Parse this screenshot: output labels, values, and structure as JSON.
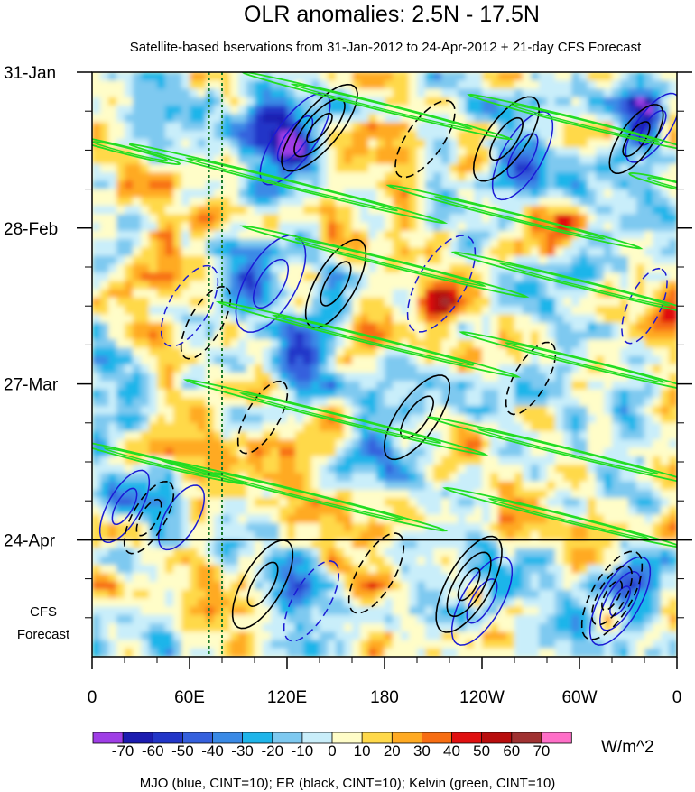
{
  "chart_data": {
    "type": "heatmap",
    "title": "OLR anomalies: 2.5N - 17.5N",
    "subtitle": "Satellite-based bservations from 31-Jan-2012 to 24-Apr-2012 + 21-day CFS Forecast",
    "x_axis": {
      "tick_labels": [
        "0",
        "60E",
        "120E",
        "180",
        "120W",
        "60W",
        "0"
      ],
      "tick_degrees_east": [
        0,
        60,
        120,
        180,
        240,
        300,
        360
      ],
      "range": [
        0,
        360
      ]
    },
    "y_axis": {
      "tick_labels": [
        "31-Jan",
        "28-Feb",
        "27-Mar",
        "24-Apr"
      ],
      "tick_days": [
        0,
        28,
        56,
        84
      ],
      "range_days": [
        0,
        105
      ],
      "forecast_label_lines": [
        "CFS",
        "Forecast"
      ],
      "forecast_start_day": 84
    },
    "colorbar": {
      "labels": [
        "-70",
        "-60",
        "-50",
        "-40",
        "-30",
        "-20",
        "-10",
        "0",
        "10",
        "20",
        "30",
        "40",
        "50",
        "60",
        "70"
      ],
      "levels": [
        -70,
        -60,
        -50,
        -40,
        -30,
        -20,
        -10,
        0,
        10,
        20,
        30,
        40,
        50,
        60,
        70
      ],
      "colors": [
        "#9f3ee6",
        "#1c1cb0",
        "#2236c8",
        "#3560dd",
        "#3a8ae6",
        "#1fb5ea",
        "#7ec9f0",
        "#c9eefa",
        "#fffdc8",
        "#ffd94a",
        "#ffaa22",
        "#f76d12",
        "#e01010",
        "#b80d0d",
        "#a03232",
        "#ff6fc8"
      ],
      "units": "W/m^2"
    },
    "contour_legend": "MJO (blue, CINT=10); ER (black, CINT=10); Kelvin (green, CINT=10)",
    "overlays": [
      {
        "name": "MJO",
        "color": "#1a1ad4",
        "contour_interval": 10
      },
      {
        "name": "ER",
        "color": "#000000",
        "contour_interval": 10
      },
      {
        "name": "Kelvin",
        "color": "#22dd22",
        "contour_interval": 10
      }
    ],
    "reference_longitudes_degrees_east": [
      72,
      80
    ],
    "anomaly_features": [
      {
        "lon": 110,
        "day": 11,
        "value": -65
      },
      {
        "lon": 125,
        "day": 14,
        "value": -50
      },
      {
        "lon": 270,
        "day": 16,
        "value": -55
      },
      {
        "lon": 340,
        "day": 8,
        "value": -45
      },
      {
        "lon": 100,
        "day": 37,
        "value": -60
      },
      {
        "lon": 130,
        "day": 52,
        "value": -55
      },
      {
        "lon": 195,
        "day": 47,
        "value": 35
      },
      {
        "lon": 215,
        "day": 40,
        "value": 30
      },
      {
        "lon": 150,
        "day": 27,
        "value": 25
      },
      {
        "lon": 285,
        "day": 30,
        "value": 30
      },
      {
        "lon": 45,
        "day": 36,
        "value": 25
      },
      {
        "lon": 72,
        "day": 60,
        "value": 12
      },
      {
        "lon": 15,
        "day": 75,
        "value": -45
      },
      {
        "lon": 225,
        "day": 66,
        "value": 30
      },
      {
        "lon": 322,
        "day": 60,
        "value": -35
      },
      {
        "lon": 85,
        "day": 95,
        "value": 35
      },
      {
        "lon": 125,
        "day": 93,
        "value": -25
      },
      {
        "lon": 175,
        "day": 90,
        "value": 25
      },
      {
        "lon": 240,
        "day": 88,
        "value": -30
      },
      {
        "lon": 330,
        "day": 92,
        "value": -30
      },
      {
        "lon": 40,
        "day": 20,
        "value": 22
      },
      {
        "lon": 260,
        "day": 80,
        "value": 20
      },
      {
        "lon": 300,
        "day": 10,
        "value": 25
      },
      {
        "lon": 175,
        "day": 70,
        "value": -20
      },
      {
        "lon": 355,
        "day": 42,
        "value": 28
      }
    ]
  }
}
